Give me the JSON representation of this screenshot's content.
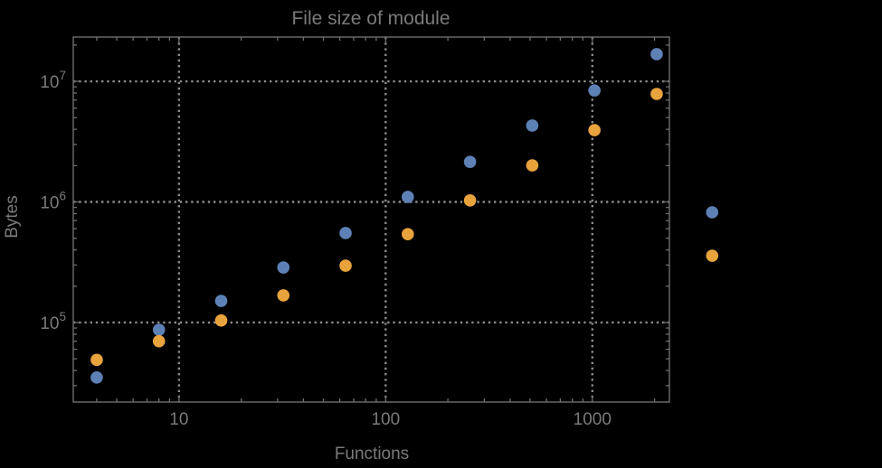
{
  "colors": {
    "background": "#000000",
    "frame": "#6e6e6e",
    "grid": "#8a8a8a",
    "text": "#7a7a7a",
    "series_blue": "#5e81b5",
    "series_orange": "#e8a33d"
  },
  "chart_data": {
    "type": "scatter",
    "title": "File size of module",
    "xlabel": "Functions",
    "ylabel": "Bytes",
    "x_scale": "log",
    "y_scale": "log",
    "grid": "dotted",
    "legend_position": "none",
    "x_range": [
      3.08,
      2360
    ],
    "y_range": [
      21900,
      23300000
    ],
    "x": [
      4,
      8,
      16,
      32,
      64,
      128,
      256,
      512,
      1024,
      2048,
      3800
    ],
    "series": [
      {
        "name": "blue",
        "color": "#5e81b5",
        "values": [
          35000,
          87000,
          151000,
          286000,
          552000,
          1100000,
          2150000,
          4300000,
          8400000,
          16800000,
          820000
        ]
      },
      {
        "name": "orange",
        "color": "#e8a33d",
        "values": [
          49000,
          70000,
          104000,
          168000,
          296000,
          540000,
          1030000,
          2010000,
          3940000,
          7860000,
          358000
        ]
      }
    ],
    "x_ticks": [
      {
        "value": 10,
        "label": "10"
      },
      {
        "value": 100,
        "label": "100"
      },
      {
        "value": 1000,
        "label": "1000"
      }
    ],
    "y_ticks": [
      {
        "value": 100000,
        "base": "10",
        "exp": "5"
      },
      {
        "value": 1000000,
        "base": "10",
        "exp": "6"
      },
      {
        "value": 10000000,
        "base": "10",
        "exp": "7"
      }
    ]
  }
}
